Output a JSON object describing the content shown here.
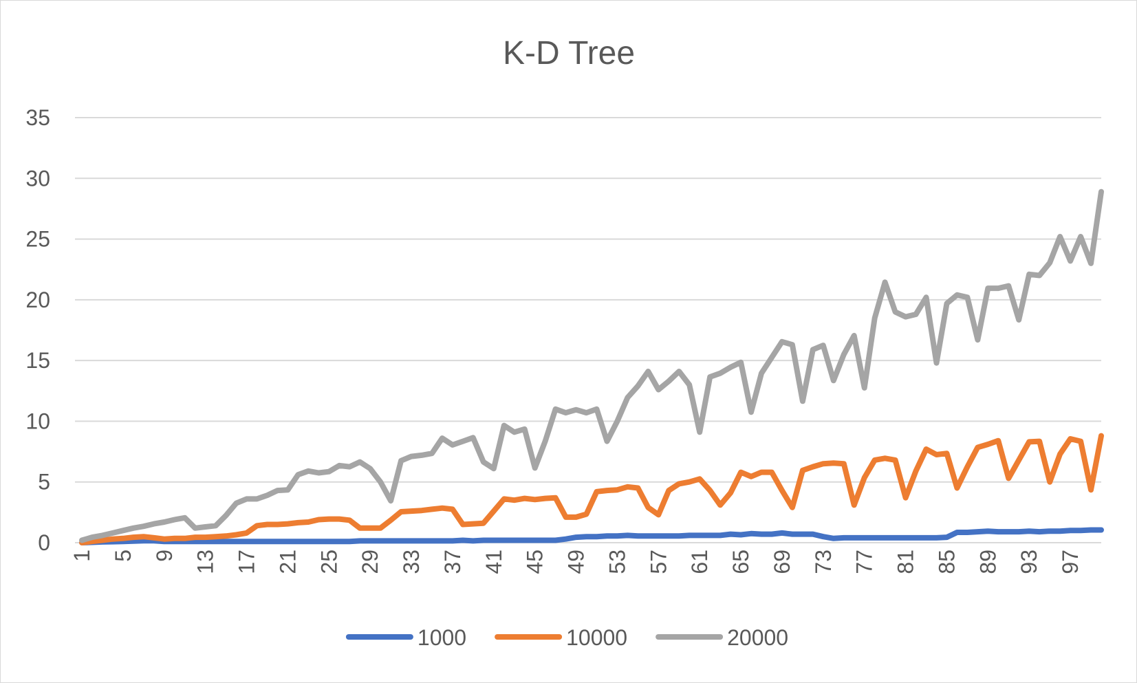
{
  "chart_data": {
    "type": "line",
    "title": "K-D Tree",
    "xlabel": "",
    "ylabel": "",
    "ylim": [
      0,
      35
    ],
    "yticks": [
      0,
      5,
      10,
      15,
      20,
      25,
      30,
      35
    ],
    "x_start": 1,
    "x_end": 100,
    "x_tick_labels": [
      "1",
      "5",
      "9",
      "13",
      "17",
      "21",
      "25",
      "29",
      "33",
      "37",
      "41",
      "45",
      "49",
      "53",
      "57",
      "61",
      "65",
      "69",
      "73",
      "77",
      "81",
      "85",
      "89",
      "93",
      "97"
    ],
    "grid": true,
    "legend_position": "bottom",
    "series": [
      {
        "name": "1000",
        "color": "#4472c4",
        "values": [
          0,
          0.03,
          0.06,
          0.08,
          0.1,
          0.13,
          0.16,
          0.16,
          0.1,
          0.1,
          0.1,
          0.1,
          0.1,
          0.1,
          0.1,
          0.1,
          0.1,
          0.1,
          0.1,
          0.1,
          0.1,
          0.1,
          0.1,
          0.1,
          0.1,
          0.1,
          0.1,
          0.15,
          0.15,
          0.15,
          0.15,
          0.15,
          0.15,
          0.15,
          0.15,
          0.15,
          0.15,
          0.2,
          0.15,
          0.2,
          0.2,
          0.2,
          0.2,
          0.2,
          0.2,
          0.2,
          0.2,
          0.3,
          0.45,
          0.5,
          0.5,
          0.55,
          0.55,
          0.6,
          0.55,
          0.55,
          0.55,
          0.55,
          0.55,
          0.6,
          0.6,
          0.6,
          0.6,
          0.7,
          0.65,
          0.75,
          0.7,
          0.7,
          0.8,
          0.7,
          0.7,
          0.7,
          0.5,
          0.35,
          0.4,
          0.4,
          0.4,
          0.4,
          0.4,
          0.4,
          0.4,
          0.4,
          0.4,
          0.4,
          0.45,
          0.85,
          0.85,
          0.9,
          0.95,
          0.9,
          0.9,
          0.9,
          0.95,
          0.9,
          0.95,
          0.95,
          1.0,
          1.0,
          1.05,
          1.05
        ]
      },
      {
        "name": "10000",
        "color": "#ed7d31",
        "values": [
          0,
          0.1,
          0.2,
          0.3,
          0.35,
          0.45,
          0.5,
          0.4,
          0.3,
          0.35,
          0.35,
          0.45,
          0.45,
          0.5,
          0.55,
          0.65,
          0.8,
          1.4,
          1.5,
          1.5,
          1.55,
          1.65,
          1.7,
          1.9,
          1.95,
          1.95,
          1.85,
          1.2,
          1.2,
          1.2,
          1.85,
          2.55,
          2.6,
          2.65,
          2.75,
          2.85,
          2.75,
          1.5,
          1.55,
          1.6,
          2.6,
          3.6,
          3.5,
          3.65,
          3.55,
          3.65,
          3.7,
          2.1,
          2.1,
          2.35,
          4.2,
          4.3,
          4.35,
          4.6,
          4.5,
          2.9,
          2.3,
          4.3,
          4.85,
          5.0,
          5.25,
          4.3,
          3.1,
          4.1,
          5.8,
          5.45,
          5.8,
          5.8,
          4.3,
          2.9,
          5.95,
          6.25,
          6.5,
          6.55,
          6.5,
          3.1,
          5.35,
          6.8,
          6.95,
          6.8,
          3.7,
          5.9,
          7.7,
          7.25,
          7.35,
          4.5,
          6.25,
          7.85,
          8.1,
          8.4,
          5.3,
          6.8,
          8.3,
          8.35,
          5.0,
          7.3,
          8.55,
          8.35,
          4.35,
          8.8
        ]
      },
      {
        "name": "20000",
        "color": "#a5a5a5",
        "values": [
          0.2,
          0.45,
          0.6,
          0.8,
          1.0,
          1.2,
          1.35,
          1.55,
          1.7,
          1.9,
          2.05,
          1.2,
          1.3,
          1.4,
          2.25,
          3.25,
          3.6,
          3.6,
          3.9,
          4.3,
          4.35,
          5.6,
          5.9,
          5.75,
          5.85,
          6.35,
          6.25,
          6.65,
          6.1,
          5.0,
          3.45,
          6.75,
          7.1,
          7.2,
          7.35,
          8.6,
          8.05,
          8.35,
          8.65,
          6.65,
          6.1,
          9.65,
          9.1,
          9.35,
          6.15,
          8.35,
          11.0,
          10.7,
          10.95,
          10.7,
          11.0,
          8.35,
          10.0,
          11.95,
          12.9,
          14.1,
          12.6,
          13.3,
          14.1,
          13.0,
          9.1,
          13.65,
          13.95,
          14.45,
          14.85,
          10.75,
          13.95,
          15.25,
          16.55,
          16.3,
          11.65,
          15.9,
          16.25,
          13.35,
          15.5,
          17.05,
          12.75,
          18.5,
          21.45,
          19.0,
          18.6,
          18.8,
          20.2,
          14.8,
          19.7,
          20.4,
          20.2,
          16.7,
          20.95,
          20.95,
          21.15,
          18.35,
          22.1,
          22.0,
          23.05,
          25.2,
          23.2,
          25.2,
          23.0,
          28.9
        ]
      }
    ]
  }
}
